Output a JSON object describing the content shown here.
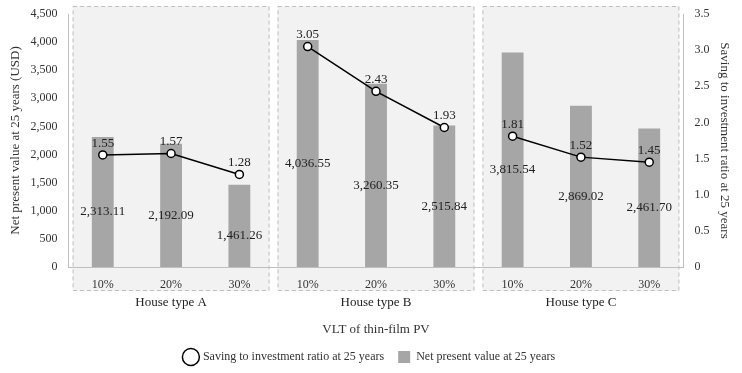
{
  "chart_data": {
    "type": "bar",
    "x_label": "VLT of thin-film PV",
    "y_label": "Net present value at 25 years (USD)",
    "y2_label": "Saving to investment ratio at 25 years",
    "categories": [
      "10%",
      "20%",
      "30%",
      "10%",
      "20%",
      "30%",
      "10%",
      "20%",
      "30%"
    ],
    "groups": [
      "House type A",
      "House type B",
      "House type C"
    ],
    "series": [
      {
        "name": "Net present value at 25 years",
        "type": "bar",
        "color": "#a6a6a6",
        "values": [
          2313.11,
          2192.09,
          1461.26,
          4036.55,
          3260.35,
          2515.84,
          3815.54,
          2869.02,
          2461.7
        ],
        "value_labels": [
          "2,313.11",
          "2,192.09",
          "1,461.26",
          "4,036.55",
          "3,260.35",
          "2,515.84",
          "3,815.54",
          "2,869.02",
          "2,461.70"
        ]
      },
      {
        "name": "Saving to investment ratio at 25 years",
        "type": "line",
        "axis": "y2",
        "color": "#000000",
        "marker": "circle",
        "values": [
          1.55,
          1.57,
          1.28,
          3.05,
          2.43,
          1.93,
          1.81,
          1.52,
          1.45
        ]
      }
    ],
    "ylim": [
      0,
      4500
    ],
    "yticks": [
      0,
      500,
      {
        "value": 1000,
        "label": "1,000"
      },
      {
        "value": 1500,
        "label": "1,500"
      },
      {
        "value": 2000,
        "label": "2,000"
      },
      {
        "value": 2500,
        "label": "2,500"
      },
      {
        "value": 3000,
        "label": "3,000"
      },
      {
        "value": 3500,
        "label": "3,500"
      },
      {
        "value": 4000,
        "label": "4,000"
      },
      {
        "value": 4500,
        "label": "4,500"
      }
    ],
    "y2lim": [
      0,
      3.5
    ],
    "y2ticks": [
      0,
      0.5,
      {
        "value": 1,
        "label": "1.0"
      },
      1.5,
      {
        "value": 2,
        "label": "2.0"
      },
      2.5,
      {
        "value": 3,
        "label": "3.0"
      },
      3.5
    ],
    "grid": false,
    "legend": "bottom",
    "data_labels": true
  }
}
